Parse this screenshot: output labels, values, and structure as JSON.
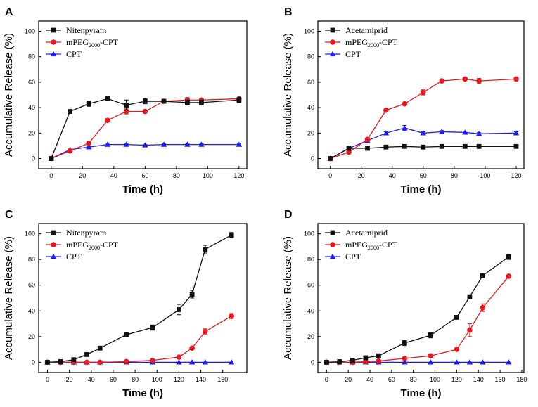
{
  "figure": {
    "colors": {
      "black_series": "#111111",
      "red_series": "#e8191c",
      "blue_series": "#1c1cf0",
      "axis": "#000000"
    }
  },
  "chart_data": [
    {
      "panel": "A",
      "type": "line",
      "xlabel": "Time (h)",
      "ylabel": "Accumulative Release (%)",
      "xlim": [
        -8,
        125
      ],
      "ylim": [
        -8,
        108
      ],
      "xticks": [
        0,
        20,
        40,
        60,
        80,
        100,
        120
      ],
      "yticks": [
        0,
        20,
        40,
        60,
        80,
        100
      ],
      "legend_position": "top-left",
      "series": [
        {
          "name": "Nitenpyram",
          "name_main": "Nitenpyram",
          "name_sub": "",
          "name_tail": "",
          "color": "#111111",
          "marker": "square",
          "x": [
            0,
            12,
            24,
            36,
            48,
            60,
            72,
            87,
            96,
            120
          ],
          "y": [
            0,
            37,
            43,
            47,
            42,
            45,
            45,
            44,
            44,
            46
          ],
          "err": [
            0,
            1,
            2,
            1,
            4,
            2,
            1,
            2,
            2,
            2
          ]
        },
        {
          "name": "mPEG2000-CPT",
          "name_main": "mPEG",
          "name_sub": "2000",
          "name_tail": "-CPT",
          "color": "#e8191c",
          "marker": "circle",
          "x": [
            0,
            12,
            24,
            36,
            48,
            60,
            72,
            87,
            96,
            120
          ],
          "y": [
            0,
            6,
            12,
            30,
            37,
            37,
            45,
            46,
            46,
            47
          ],
          "err": [
            0,
            0.5,
            1,
            1,
            2,
            1,
            1,
            2,
            1,
            1
          ]
        },
        {
          "name": "CPT",
          "name_main": "CPT",
          "name_sub": "",
          "name_tail": "",
          "color": "#1c1cf0",
          "marker": "triangle",
          "x": [
            0,
            12,
            24,
            36,
            48,
            60,
            72,
            87,
            96,
            120
          ],
          "y": [
            0,
            7,
            9,
            11,
            11,
            10.5,
            11,
            11,
            11,
            11
          ],
          "err": [
            0,
            0.5,
            0.5,
            1,
            0.5,
            0.5,
            0.5,
            0.5,
            0.5,
            0.5
          ]
        }
      ]
    },
    {
      "panel": "B",
      "type": "line",
      "xlabel": "Time (h)",
      "ylabel": "Accumulative Release (%)",
      "xlim": [
        -8,
        125
      ],
      "ylim": [
        -8,
        108
      ],
      "xticks": [
        0,
        20,
        40,
        60,
        80,
        100,
        120
      ],
      "yticks": [
        0,
        20,
        40,
        60,
        80,
        100
      ],
      "legend_position": "top-left",
      "series": [
        {
          "name": "Acetamiprid",
          "name_main": "Acetamiprid",
          "name_sub": "",
          "name_tail": "",
          "color": "#111111",
          "marker": "square",
          "x": [
            0,
            12,
            24,
            36,
            48,
            60,
            72,
            87,
            96,
            120
          ],
          "y": [
            0,
            8,
            8,
            9,
            9.5,
            9,
            9.5,
            9.5,
            9.5,
            9.5
          ],
          "err": [
            0,
            0.5,
            0.5,
            0.5,
            1,
            0.5,
            0.5,
            1,
            0.5,
            1
          ]
        },
        {
          "name": "mPEG2000-CPT",
          "name_main": "mPEG",
          "name_sub": "2000",
          "name_tail": "-CPT",
          "color": "#e8191c",
          "marker": "circle",
          "x": [
            0,
            12,
            24,
            36,
            48,
            60,
            72,
            87,
            96,
            120
          ],
          "y": [
            0,
            5,
            15,
            38,
            43,
            52,
            61,
            62.5,
            61,
            62.5
          ],
          "err": [
            0,
            0.5,
            1,
            1,
            1,
            2,
            1,
            1,
            2,
            1
          ]
        },
        {
          "name": "CPT",
          "name_main": "CPT",
          "name_sub": "",
          "name_tail": "",
          "color": "#1c1cf0",
          "marker": "triangle",
          "x": [
            0,
            12,
            24,
            36,
            48,
            60,
            72,
            87,
            96,
            120
          ],
          "y": [
            0,
            8,
            14,
            20,
            24,
            20,
            21,
            20.5,
            19.5,
            20
          ],
          "err": [
            0,
            0.5,
            1,
            1,
            2,
            1,
            1,
            1,
            1,
            1
          ]
        }
      ]
    },
    {
      "panel": "C",
      "type": "line",
      "xlabel": "Time (h)",
      "ylabel": "Accumulative Release (%)",
      "xlim": [
        -8,
        182
      ],
      "ylim": [
        -8,
        108
      ],
      "xticks": [
        0,
        20,
        40,
        60,
        80,
        100,
        120,
        140,
        160
      ],
      "yticks": [
        0,
        20,
        40,
        60,
        80,
        100
      ],
      "legend_position": "top-left",
      "series": [
        {
          "name": "Nitenpyram",
          "name_main": "Nitenpyram",
          "name_sub": "",
          "name_tail": "",
          "color": "#111111",
          "marker": "square",
          "x": [
            0,
            12,
            24,
            36,
            48,
            72,
            96,
            120,
            132,
            144,
            168
          ],
          "y": [
            0,
            0.5,
            2,
            6,
            11,
            21.5,
            27,
            41,
            53,
            88,
            99
          ],
          "err": [
            0,
            0.3,
            0.5,
            0.5,
            0.5,
            0.5,
            2,
            4,
            3,
            3,
            2
          ]
        },
        {
          "name": "mPEG2000-CPT",
          "name_main": "mPEG",
          "name_sub": "2000",
          "name_tail": "-CPT",
          "color": "#e8191c",
          "marker": "circle",
          "x": [
            0,
            12,
            24,
            36,
            48,
            72,
            96,
            120,
            132,
            144,
            168
          ],
          "y": [
            0,
            0,
            0,
            0,
            0,
            0.5,
            1.5,
            4,
            11,
            24,
            36
          ],
          "err": [
            0,
            0,
            0,
            0,
            0,
            0.2,
            0.3,
            0.5,
            1,
            2,
            2
          ]
        },
        {
          "name": "CPT",
          "name_main": "CPT",
          "name_sub": "",
          "name_tail": "",
          "color": "#1c1cf0",
          "marker": "triangle",
          "x": [
            0,
            12,
            24,
            36,
            48,
            72,
            96,
            120,
            132,
            144,
            168
          ],
          "y": [
            0,
            0,
            0,
            0,
            0,
            0,
            0,
            0,
            0,
            0,
            0
          ],
          "err": [
            0,
            0,
            0,
            0,
            0,
            0,
            0,
            0,
            0,
            0,
            0
          ]
        }
      ]
    },
    {
      "panel": "D",
      "type": "line",
      "xlabel": "Time (h)",
      "ylabel": "Accumulative Release (%)",
      "xlim": [
        -8,
        182
      ],
      "ylim": [
        -8,
        108
      ],
      "xticks": [
        0,
        20,
        40,
        60,
        80,
        100,
        120,
        140,
        160,
        180
      ],
      "yticks": [
        0,
        20,
        40,
        60,
        80,
        100
      ],
      "legend_position": "top-left",
      "series": [
        {
          "name": "Acetamiprid",
          "name_main": "Acetamiprid",
          "name_sub": "",
          "name_tail": "",
          "color": "#111111",
          "marker": "square",
          "x": [
            0,
            12,
            24,
            36,
            48,
            72,
            96,
            120,
            132,
            144,
            168
          ],
          "y": [
            0,
            0.5,
            1.5,
            3.5,
            5,
            15,
            21,
            35,
            51,
            67.5,
            82
          ],
          "err": [
            0,
            0.2,
            0.3,
            0.5,
            0.5,
            2,
            2,
            1,
            1,
            1,
            2
          ]
        },
        {
          "name": "mPEG2000-CPT",
          "name_main": "mPEG",
          "name_sub": "2000",
          "name_tail": "-CPT",
          "color": "#e8191c",
          "marker": "circle",
          "x": [
            0,
            12,
            24,
            36,
            48,
            72,
            96,
            120,
            132,
            144,
            168
          ],
          "y": [
            0,
            0,
            0,
            0.5,
            1,
            3,
            5,
            10,
            25,
            42.5,
            67
          ],
          "err": [
            0,
            0,
            0,
            0.2,
            0.2,
            0.3,
            0.5,
            1,
            5,
            3,
            1
          ]
        },
        {
          "name": "CPT",
          "name_main": "CPT",
          "name_sub": "",
          "name_tail": "",
          "color": "#1c1cf0",
          "marker": "triangle",
          "x": [
            0,
            12,
            24,
            36,
            48,
            72,
            96,
            120,
            132,
            144,
            168
          ],
          "y": [
            0,
            0,
            0,
            0,
            0,
            0,
            0,
            0,
            0,
            0,
            0
          ],
          "err": [
            0,
            0,
            0,
            0,
            0,
            0,
            0,
            0,
            0,
            0,
            0
          ]
        }
      ]
    }
  ]
}
